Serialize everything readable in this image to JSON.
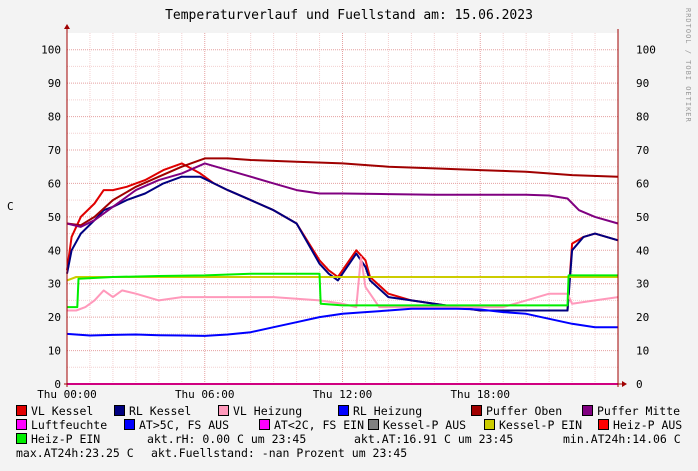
{
  "title": "Temperaturverlauf und Fuellstand am: 15.06.2023",
  "watermark": "RRDTOOL / TOBI OETIKER",
  "colors": {
    "vl_kessel": "#e00000",
    "rl_kessel": "#000080",
    "vl_heizung": "#ff99bb",
    "rl_heizung": "#0000ff",
    "puffer_oben": "#a00000",
    "puffer_mitte": "#800080",
    "luftfeuchte": "#ff00ff",
    "kessel_p_ein": "#cccc00",
    "heiz_p_ein": "#00ee00",
    "grid_major": "#e5a0a0",
    "grid_minor": "#f3d0d0",
    "axis": "#a00000"
  },
  "chart_data": {
    "type": "line",
    "title": "Temperaturverlauf und Fuellstand am: 15.06.2023",
    "ylabel": "C",
    "ylim": [
      0,
      105
    ],
    "y_ticks": [
      "0",
      "10",
      "20",
      "30",
      "40",
      "50",
      "60",
      "70",
      "80",
      "90",
      "100"
    ],
    "x_ticks": [
      "Thu 00:00",
      "Thu 06:00",
      "Thu 12:00",
      "Thu 18:00"
    ],
    "x_unit": "hour of day",
    "xlim": [
      0,
      24
    ],
    "grid": true,
    "series": [
      {
        "name": "VL Kessel",
        "key": "vl_kessel",
        "x": [
          0,
          0.2,
          0.6,
          1.2,
          1.6,
          2.0,
          2.6,
          3.4,
          4.2,
          5.0,
          5.8,
          6.4,
          7.0,
          8.0,
          9.0,
          10.0,
          11.0,
          11.4,
          11.8,
          12.6,
          13.0,
          13.2,
          14.0,
          15.0,
          16.0,
          17.0,
          18.0,
          19.0,
          20.0,
          21.0,
          21.8,
          22.0,
          22.5,
          23.0,
          23.5,
          24.0
        ],
        "values": [
          34,
          44,
          50,
          54,
          58,
          58,
          59,
          61,
          64,
          66,
          63,
          60,
          58,
          55,
          52,
          48,
          37,
          34,
          32,
          40,
          37,
          32,
          27,
          25,
          24,
          23,
          22,
          22,
          22,
          22,
          22,
          42,
          44,
          45,
          44,
          43
        ]
      },
      {
        "name": "RL Kessel",
        "key": "rl_kessel",
        "x": [
          0,
          0.2,
          0.6,
          1.2,
          1.6,
          2.0,
          2.6,
          3.4,
          4.2,
          5.0,
          5.8,
          6.4,
          7.0,
          8.0,
          9.0,
          10.0,
          11.0,
          11.4,
          11.8,
          12.6,
          13.0,
          13.2,
          14.0,
          15.0,
          16.0,
          17.0,
          18.0,
          19.0,
          20.0,
          21.0,
          21.8,
          22.0,
          22.5,
          23.0,
          23.5,
          24.0
        ],
        "values": [
          33,
          40,
          45,
          49,
          52,
          53,
          55,
          57,
          60,
          62,
          62,
          60,
          58,
          55,
          52,
          48,
          36,
          33,
          31,
          39,
          35,
          31,
          26,
          25,
          24,
          23,
          22,
          22,
          22,
          22,
          22,
          40,
          44,
          45,
          44,
          43
        ]
      },
      {
        "name": "VL Heizung",
        "key": "vl_heizung",
        "x": [
          0,
          0.4,
          0.8,
          1.2,
          1.6,
          2.0,
          2.4,
          3.0,
          4.0,
          5.0,
          6.0,
          7.0,
          8.0,
          9.0,
          10.0,
          11.0,
          12.0,
          12.6,
          12.8,
          13.0,
          13.6,
          14.0,
          15.0,
          16.0,
          17.0,
          18.0,
          19.0,
          20.0,
          21.0,
          21.8,
          22.0,
          23.0,
          24.0
        ],
        "values": [
          22,
          22,
          23,
          25,
          28,
          26,
          28,
          27,
          25,
          26,
          26,
          26,
          26,
          26,
          25.5,
          25,
          24,
          23,
          38,
          29,
          23,
          23,
          23,
          23,
          23,
          23,
          23,
          25,
          27,
          27,
          24,
          25,
          26
        ]
      },
      {
        "name": "RL Heizung",
        "key": "rl_heizung",
        "x": [
          0,
          1,
          2,
          3,
          4,
          5,
          6,
          7,
          8,
          9,
          10,
          11,
          12,
          13,
          14,
          15,
          16,
          17,
          18,
          19,
          20,
          21,
          22,
          23,
          24
        ],
        "values": [
          15,
          14.5,
          14.7,
          14.8,
          14.6,
          14.5,
          14.4,
          14.8,
          15.5,
          17,
          18.5,
          20,
          21,
          21.5,
          22,
          22.5,
          22.5,
          22.5,
          22.3,
          21.5,
          21,
          19.5,
          18,
          17,
          17
        ]
      },
      {
        "name": "Puffer Oben",
        "key": "puffer_oben",
        "x": [
          0,
          0.6,
          1.2,
          2.0,
          3.0,
          4.0,
          5.0,
          6.0,
          7.0,
          8.0,
          10.0,
          12.0,
          14.0,
          16.0,
          18.0,
          20.0,
          22.0,
          24.0
        ],
        "values": [
          48,
          47.5,
          50,
          55,
          59,
          62,
          65,
          67.5,
          67.5,
          67,
          66.5,
          66,
          65,
          64.5,
          64,
          63.5,
          62.5,
          62
        ]
      },
      {
        "name": "Puffer Mitte",
        "key": "puffer_mitte",
        "x": [
          0,
          0.6,
          1.2,
          2.0,
          3.0,
          4.0,
          5.0,
          6.0,
          7.0,
          8.0,
          9.0,
          10.0,
          11.0,
          12.0,
          14.0,
          16.0,
          18.0,
          20.0,
          21.0,
          21.8,
          22.3,
          23.0,
          24.0
        ],
        "values": [
          48,
          47,
          49,
          53,
          58,
          61,
          63,
          66,
          64,
          62,
          60,
          58,
          57,
          57,
          56.8,
          56.6,
          56.6,
          56.6,
          56.4,
          55.5,
          52,
          50,
          48
        ]
      },
      {
        "name": "Luftfeuchte",
        "key": "luftfeuchte",
        "x": [
          0,
          24
        ],
        "values": [
          0,
          0
        ]
      },
      {
        "name": "Kessel-P EIN",
        "key": "kessel_p_ein",
        "x": [
          0,
          0.4,
          0.5,
          24
        ],
        "values": [
          31,
          32,
          32,
          32
        ]
      },
      {
        "name": "Heiz-P EIN",
        "key": "heiz_p_ein",
        "x": [
          0,
          0.45,
          0.5,
          2,
          4,
          6,
          8,
          10,
          11.0,
          11.05,
          12,
          14,
          16,
          18,
          20,
          21.8,
          21.85,
          22.5,
          24
        ],
        "values": [
          23,
          23,
          31.5,
          32,
          32.3,
          32.5,
          33,
          33,
          33,
          24,
          23.5,
          23.5,
          23.5,
          23.5,
          23.5,
          23.5,
          32.5,
          32.5,
          32.5
        ]
      }
    ]
  },
  "legend": [
    {
      "label": "VL Kessel",
      "color": "#e00000"
    },
    {
      "label": "RL Kessel",
      "color": "#000080"
    },
    {
      "label": "VL Heizung",
      "color": "#ff99bb"
    },
    {
      "label": "RL Heizung",
      "color": "#0000ff"
    },
    {
      "label": "Puffer Oben",
      "color": "#a00000"
    },
    {
      "label": "Puffer Mitte",
      "color": "#800080"
    },
    {
      "label": "Luftfeuchte",
      "color": "#ff00ff"
    },
    {
      "label": "AT>5C, FS AUS",
      "color": "#0000ff"
    },
    {
      "label": "AT<2C, FS EIN",
      "color": "#ff00ff"
    },
    {
      "label": "Kessel-P AUS",
      "color": "#808080"
    },
    {
      "label": "Kessel-P EIN",
      "color": "#cccc00"
    },
    {
      "label": "Heiz-P AUS",
      "color": "#ff0000"
    },
    {
      "label": "Heiz-P EIN",
      "color": "#00ee00"
    }
  ],
  "stats": {
    "rh": "akt.rH: 0.00 C um 23:45",
    "at": "akt.AT:16.91 C um 23:45",
    "min": "min.AT24h:14.06 C",
    "max": "max.AT24h:23.25 C",
    "fill": "akt.Fuellstand: -nan Prozent um 23:45"
  }
}
